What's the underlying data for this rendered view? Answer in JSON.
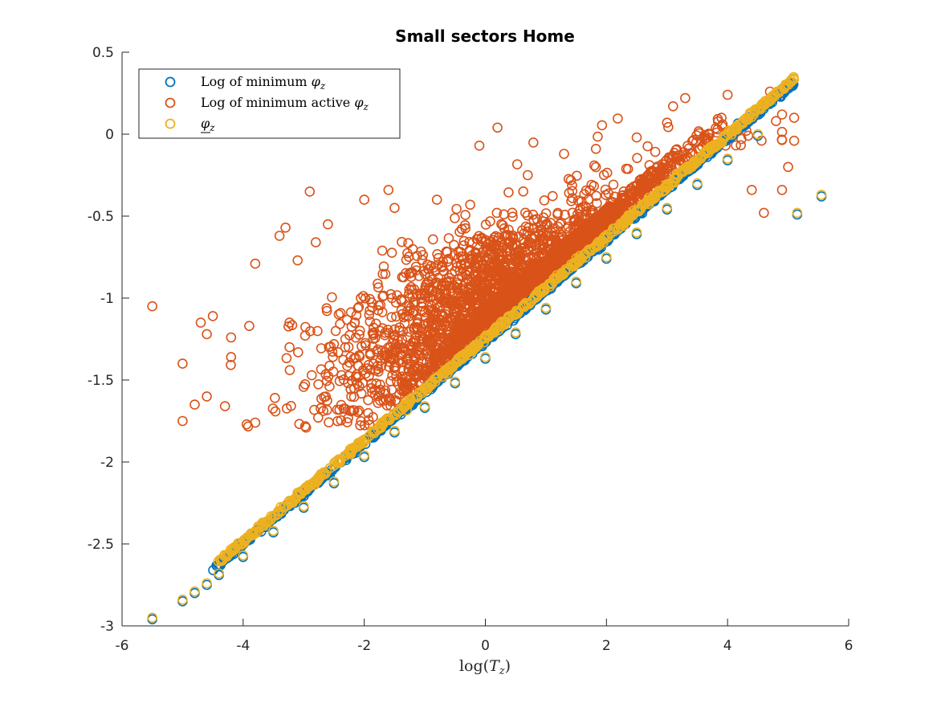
{
  "chart_data": {
    "type": "scatter",
    "title": "Small sectors Home",
    "xlabel": "log(T_z)",
    "ylabel": "",
    "xlim": [
      -6,
      6
    ],
    "ylim": [
      -3,
      0.5
    ],
    "xticks": [
      -6,
      -4,
      -2,
      0,
      2,
      4,
      6
    ],
    "yticks": [
      -3,
      -2.5,
      -2,
      -1.5,
      -1,
      -0.5,
      0,
      0.5
    ],
    "xtick_labels": [
      "-6",
      "-4",
      "-2",
      "0",
      "2",
      "4",
      "6"
    ],
    "ytick_labels": [
      "-3",
      "-2.5",
      "-2",
      "-1.5",
      "-1",
      "-0.5",
      "0",
      "0.5"
    ],
    "grid": false,
    "legend_position": "top-left",
    "marker": "open-circle",
    "series": [
      {
        "name": "Log of minimum φ_z",
        "color": "#0072BD",
        "relation": "y ≈ 0.31·x − 1.25 (tight linear band)",
        "points": [
          [
            -5.5,
            -2.96
          ],
          [
            -5.0,
            -2.85
          ],
          [
            -4.8,
            -2.8
          ],
          [
            -4.6,
            -2.75
          ],
          [
            -4.4,
            -2.69
          ],
          [
            -4.0,
            -2.58
          ],
          [
            -3.5,
            -2.43
          ],
          [
            -3.0,
            -2.28
          ],
          [
            -2.5,
            -2.13
          ],
          [
            -2.0,
            -1.97
          ],
          [
            -1.5,
            -1.82
          ],
          [
            -1.0,
            -1.67
          ],
          [
            -0.5,
            -1.52
          ],
          [
            0.0,
            -1.37
          ],
          [
            0.5,
            -1.22
          ],
          [
            1.0,
            -1.07
          ],
          [
            1.5,
            -0.91
          ],
          [
            2.0,
            -0.76
          ],
          [
            2.5,
            -0.61
          ],
          [
            3.0,
            -0.46
          ],
          [
            3.5,
            -0.31
          ],
          [
            4.0,
            -0.16
          ],
          [
            4.5,
            -0.01
          ],
          [
            5.0,
            0.09
          ],
          [
            5.15,
            -0.49
          ],
          [
            5.55,
            -0.38
          ]
        ]
      },
      {
        "name": "Log of minimum active φ_z",
        "color": "#D95319",
        "relation": "dense cloud above the line, roughly y ≈ 0.16·x − 1.05 with spread ±0.45",
        "points": [
          [
            -5.5,
            -1.05
          ],
          [
            -5.0,
            -1.4
          ],
          [
            -5.0,
            -1.75
          ],
          [
            -4.8,
            -1.65
          ],
          [
            -4.7,
            -1.15
          ],
          [
            -4.5,
            -1.11
          ],
          [
            -4.6,
            -1.6
          ],
          [
            -4.6,
            -1.22
          ],
          [
            -4.2,
            -1.24
          ],
          [
            -4.2,
            -1.36
          ],
          [
            -4.3,
            -1.66
          ],
          [
            -3.9,
            -1.17
          ],
          [
            -3.8,
            -0.79
          ],
          [
            -3.8,
            -1.76
          ],
          [
            -3.4,
            -0.62
          ],
          [
            -3.3,
            -0.57
          ],
          [
            -3.1,
            -0.77
          ],
          [
            -2.9,
            -0.35
          ],
          [
            -2.8,
            -0.66
          ],
          [
            -2.6,
            -0.55
          ],
          [
            -2.0,
            -0.4
          ],
          [
            -1.6,
            -0.34
          ],
          [
            -1.5,
            -0.45
          ],
          [
            -0.8,
            -0.4
          ],
          [
            -0.1,
            -0.07
          ],
          [
            0.2,
            0.04
          ],
          [
            0.7,
            -0.25
          ],
          [
            1.3,
            -0.12
          ],
          [
            2.5,
            -0.02
          ],
          [
            3.0,
            0.07
          ],
          [
            3.1,
            0.17
          ],
          [
            3.3,
            0.22
          ],
          [
            3.4,
            -0.18
          ],
          [
            3.6,
            -0.02
          ],
          [
            3.9,
            0.1
          ],
          [
            4.0,
            0.24
          ],
          [
            4.7,
            0.26
          ],
          [
            4.8,
            0.08
          ],
          [
            4.8,
            0.23
          ],
          [
            4.9,
            0.12
          ],
          [
            5.1,
            0.1
          ],
          [
            5.1,
            -0.04
          ],
          [
            5.0,
            -0.2
          ],
          [
            4.9,
            -0.34
          ],
          [
            4.4,
            -0.34
          ],
          [
            4.6,
            -0.48
          ]
        ]
      },
      {
        "name": "φ_z (underlined)",
        "color": "#EDB120",
        "relation": "overlaps series 1, y ≈ 0.31·x − 1.24",
        "points": [
          [
            -5.5,
            -2.95
          ],
          [
            -5.0,
            -2.84
          ],
          [
            -4.8,
            -2.79
          ],
          [
            -4.6,
            -2.74
          ],
          [
            -4.4,
            -2.68
          ],
          [
            -4.0,
            -2.57
          ],
          [
            -3.5,
            -2.42
          ],
          [
            -3.0,
            -2.27
          ],
          [
            -2.5,
            -2.12
          ],
          [
            -2.0,
            -1.96
          ],
          [
            -1.5,
            -1.81
          ],
          [
            -1.0,
            -1.66
          ],
          [
            -0.5,
            -1.51
          ],
          [
            0.0,
            -1.36
          ],
          [
            0.5,
            -1.21
          ],
          [
            1.0,
            -1.06
          ],
          [
            1.5,
            -0.9
          ],
          [
            2.0,
            -0.75
          ],
          [
            2.5,
            -0.6
          ],
          [
            3.0,
            -0.45
          ],
          [
            3.5,
            -0.3
          ],
          [
            4.0,
            -0.15
          ],
          [
            4.5,
            -0.0
          ],
          [
            5.0,
            0.1
          ],
          [
            5.15,
            -0.48
          ],
          [
            5.55,
            -0.37
          ]
        ]
      }
    ],
    "legend_labels": [
      {
        "prefix": "Log of minimum ",
        "symbol": "φ",
        "sub": "z"
      },
      {
        "prefix": "Log of minimum active ",
        "symbol": "φ",
        "sub": "z"
      },
      {
        "prefix": "",
        "symbol": "φ",
        "sub": "z"
      }
    ]
  }
}
